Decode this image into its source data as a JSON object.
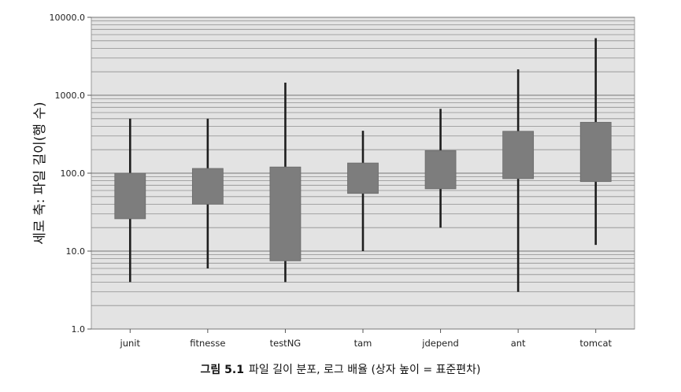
{
  "chart_data": {
    "type": "box",
    "scale": "log",
    "ylim": [
      1.0,
      10000.0
    ],
    "yticks": [
      "1.0",
      "10.0",
      "100.0",
      "1000.0",
      "10000.0"
    ],
    "ylabel": "세로 축: 파일 길이(행 수)",
    "grid": true,
    "categories": [
      "junit",
      "fitnesse",
      "testNG",
      "tam",
      "jdepend",
      "ant",
      "tomcat"
    ],
    "boxes": [
      {
        "name": "junit",
        "min": 4,
        "q1": 26,
        "q3": 100,
        "max": 500
      },
      {
        "name": "fitnesse",
        "min": 6,
        "q1": 40,
        "q3": 115,
        "max": 500
      },
      {
        "name": "testNG",
        "min": 4,
        "q1": 7.5,
        "q3": 120,
        "max": 1450
      },
      {
        "name": "tam",
        "min": 10,
        "q1": 55,
        "q3": 135,
        "max": 350
      },
      {
        "name": "jdepend",
        "min": 20,
        "q1": 63,
        "q3": 195,
        "max": 670
      },
      {
        "name": "ant",
        "min": 3,
        "q1": 85,
        "q3": 345,
        "max": 2150
      },
      {
        "name": "tomcat",
        "min": 12,
        "q1": 78,
        "q3": 450,
        "max": 5400
      }
    ]
  },
  "caption": {
    "number": "그림 5.1",
    "text": "파일 길이 분포, 로그 배율 (상자 높이 = 표준편차)"
  },
  "colors": {
    "plot_bg": "#e3e3e3",
    "grid": "#8f8f8f",
    "box": "#7d7d7d",
    "whisker": "#1e1e1e"
  }
}
